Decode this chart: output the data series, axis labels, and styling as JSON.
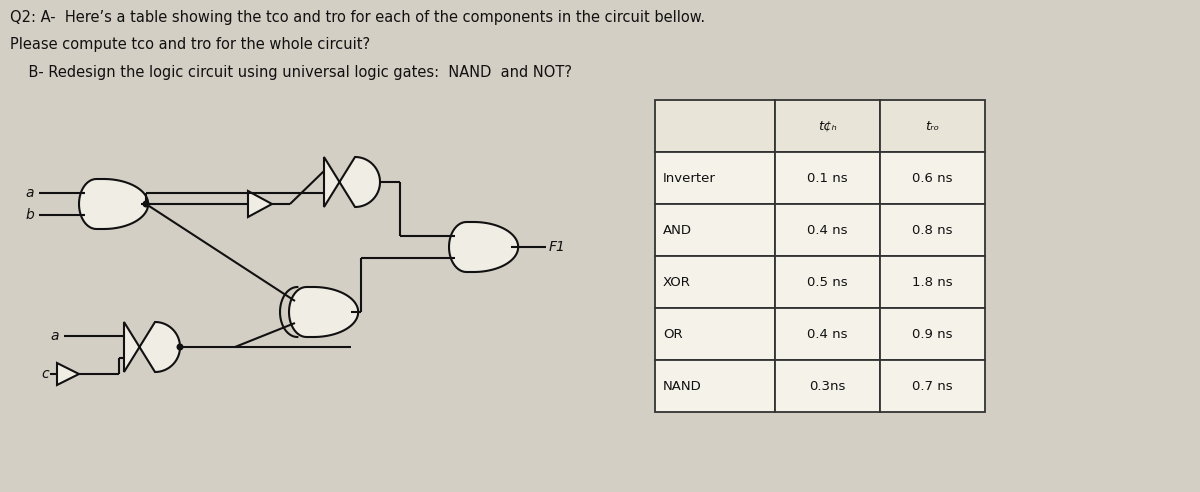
{
  "title_line1": "Q2: A-  Here’s a table showing the tco and tro for each of the components in the circuit bellow.",
  "title_line2": "Please compute tco and tro for the whole circuit?",
  "title_line3": "    B- Redesign the logic circuit using universal logic gates:  NAND  and NOT?",
  "table_headers": [
    "",
    "tco",
    "tro"
  ],
  "table_rows": [
    [
      "Inverter",
      "0.1 ns",
      "0.6 ns"
    ],
    [
      "AND",
      "0.4 ns",
      "0.8 ns"
    ],
    [
      "XOR",
      "0.5 ns",
      "1.8 ns"
    ],
    [
      "OR",
      "0.4 ns",
      "0.9 ns"
    ],
    [
      "NAND",
      "0.3ns",
      "0.7 ns"
    ]
  ],
  "bg_color": "#d4cfc5",
  "circuit_bg": "#ffffff",
  "text_color": "#111111",
  "table_bg": "#f8f6f0",
  "gate_fill": "#f0ede5",
  "gate_edge": "#111111",
  "label_a1": "a",
  "label_b1": "b",
  "label_a2": "a",
  "label_c": "c",
  "label_f1": "F1"
}
